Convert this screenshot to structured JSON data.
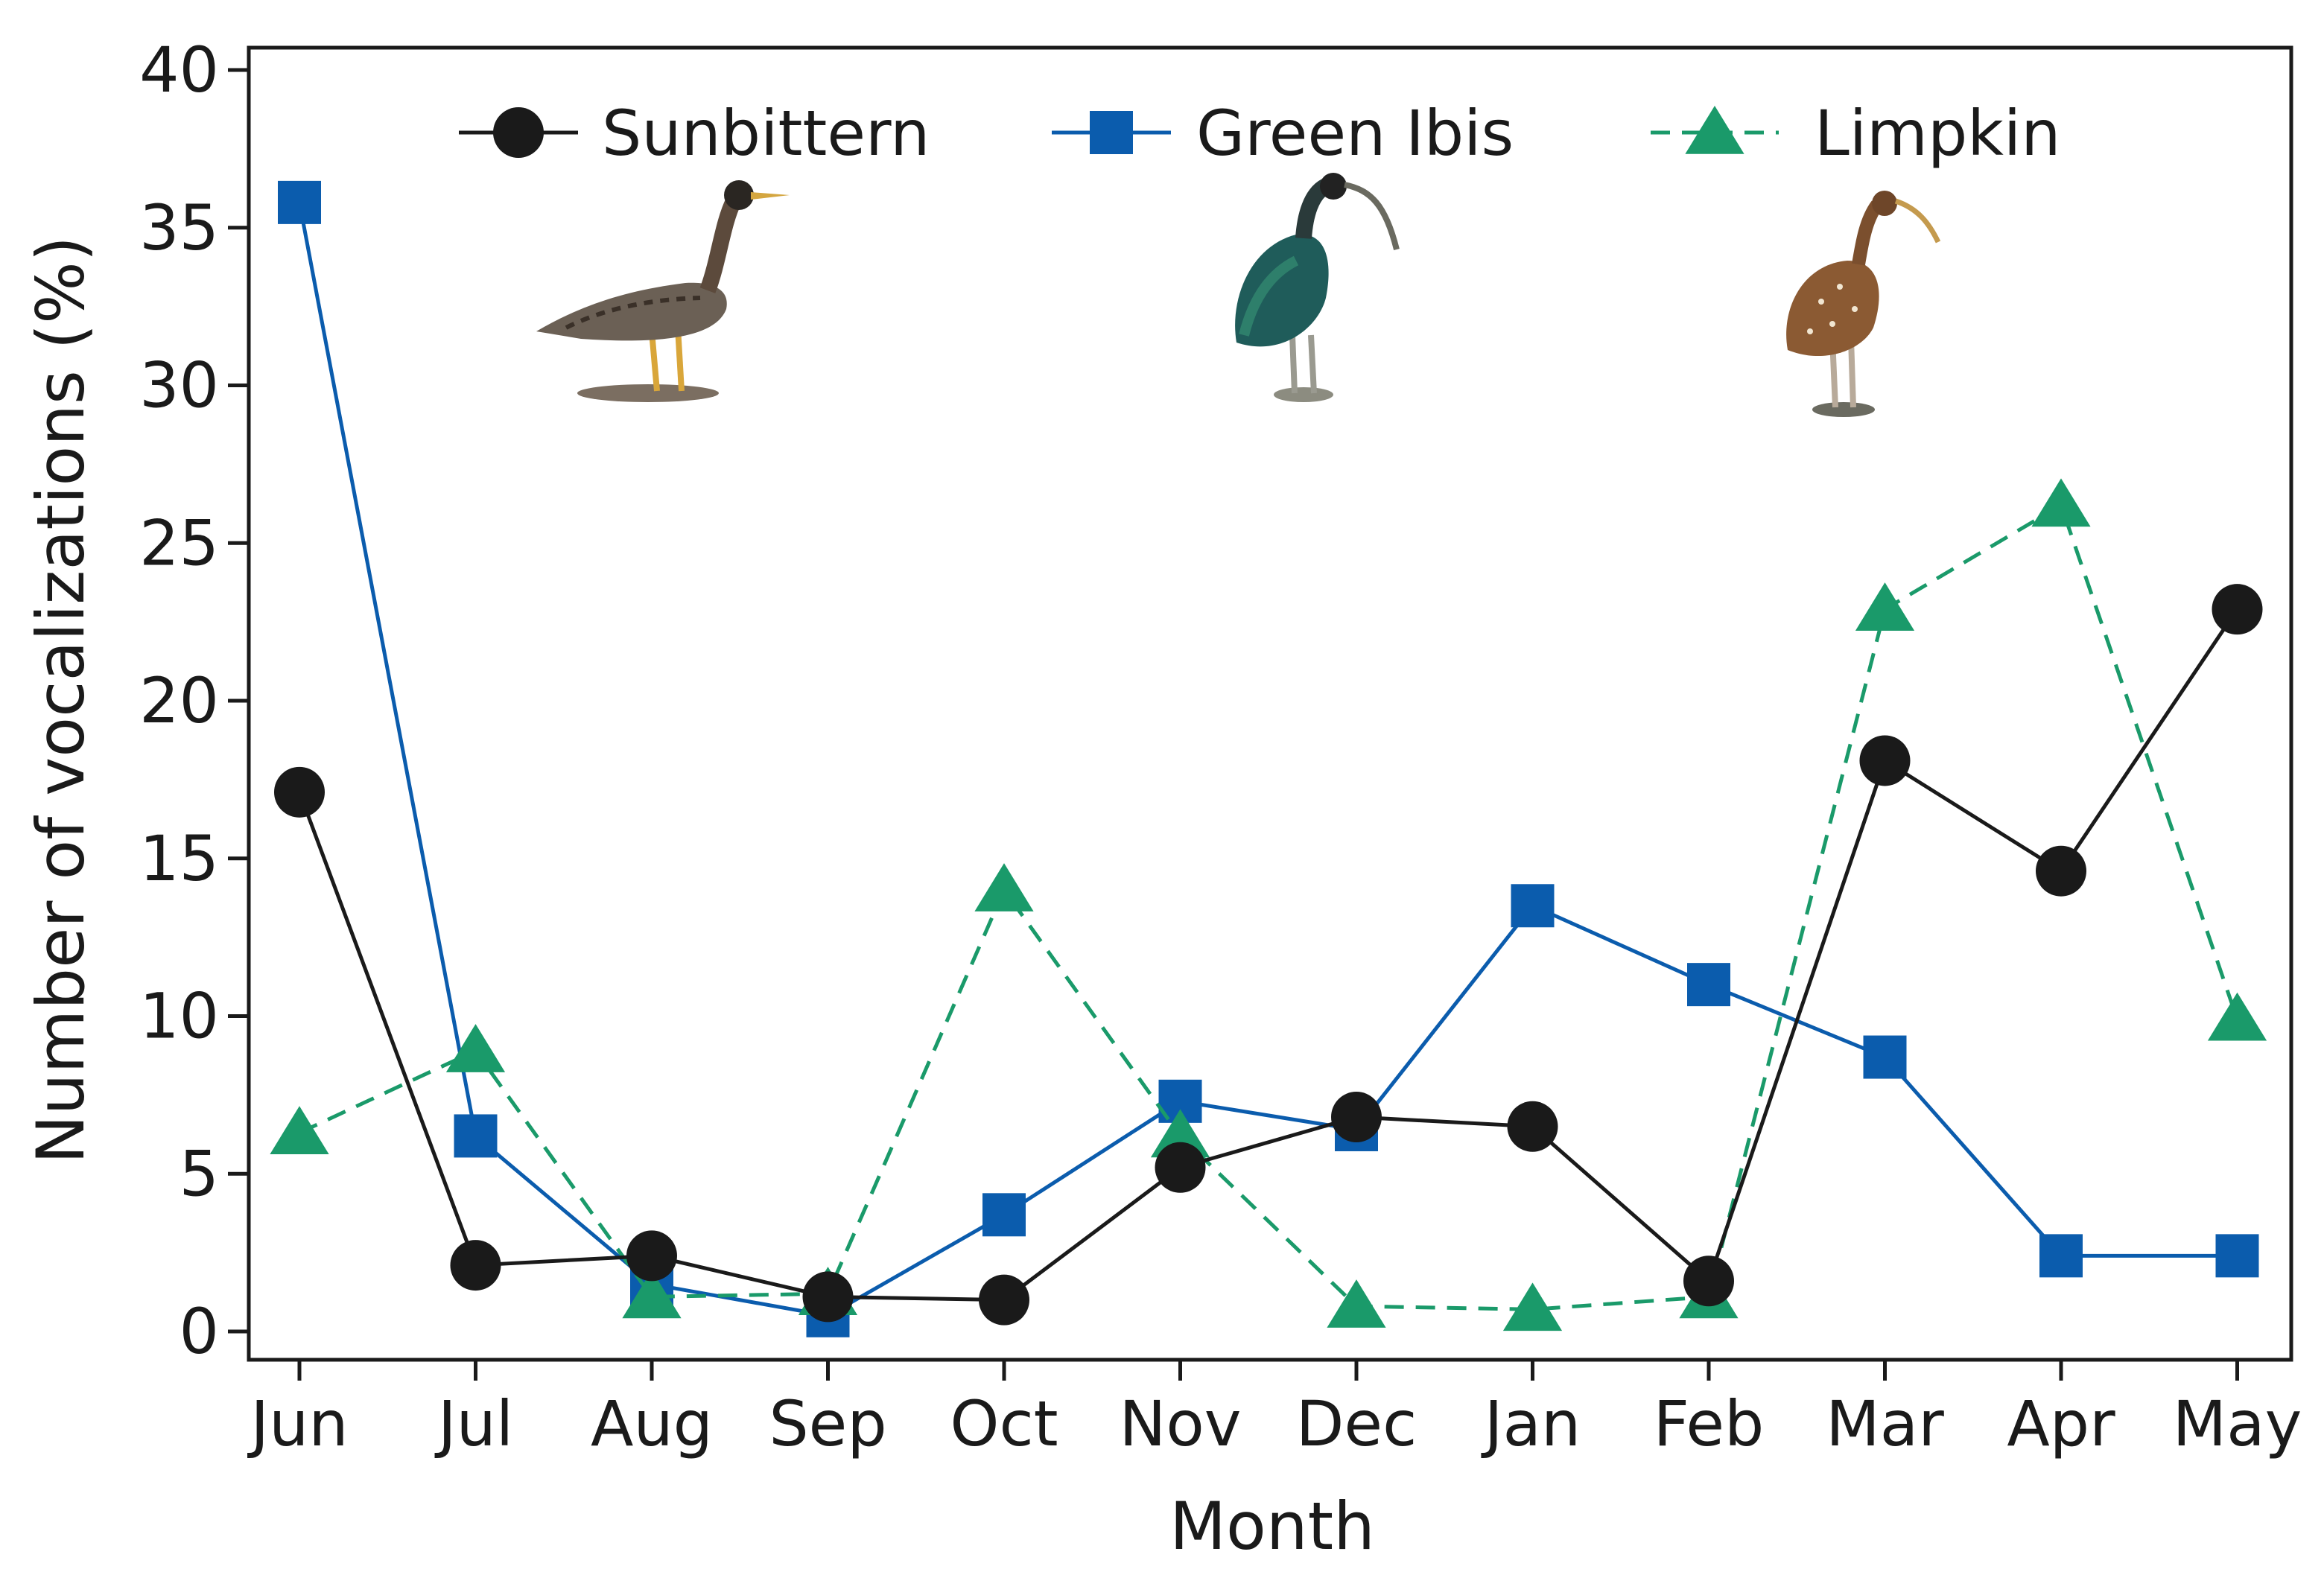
{
  "chart_data": {
    "type": "line",
    "title": "",
    "xlabel": "Month",
    "ylabel": "Number of vocalizations (%)",
    "categories": [
      "Jun",
      "Jul",
      "Aug",
      "Sep",
      "Oct",
      "Nov",
      "Dec",
      "Jan",
      "Feb",
      "Mar",
      "Apr",
      "May"
    ],
    "ylim": [
      0,
      40
    ],
    "yticks": [
      0,
      5,
      10,
      15,
      20,
      25,
      30,
      35,
      40
    ],
    "grid": false,
    "legend_position": "top",
    "series": [
      {
        "name": "Sunbittern",
        "color": "#1a1a1a",
        "marker": "circle",
        "line_style": "solid",
        "values": [
          17.1,
          2.1,
          2.4,
          1.1,
          1.0,
          5.2,
          6.8,
          6.5,
          1.6,
          18.1,
          14.6,
          22.9
        ]
      },
      {
        "name": "Green Ibis",
        "color": "#0b5cad",
        "marker": "square",
        "line_style": "solid",
        "values": [
          35.8,
          6.2,
          1.5,
          0.5,
          3.7,
          7.3,
          6.4,
          13.5,
          11.0,
          8.7,
          2.4,
          2.4
        ]
      },
      {
        "name": "Limpkin",
        "color": "#1a9a6a",
        "marker": "triangle",
        "line_style": "dashed",
        "values": [
          6.3,
          8.9,
          1.1,
          1.2,
          14.0,
          6.2,
          0.8,
          0.7,
          1.1,
          22.9,
          26.2,
          9.9
        ]
      }
    ],
    "illustrations": [
      {
        "species": "sunbittern-illustration"
      },
      {
        "species": "green-ibis-illustration"
      },
      {
        "species": "limpkin-illustration"
      }
    ]
  }
}
